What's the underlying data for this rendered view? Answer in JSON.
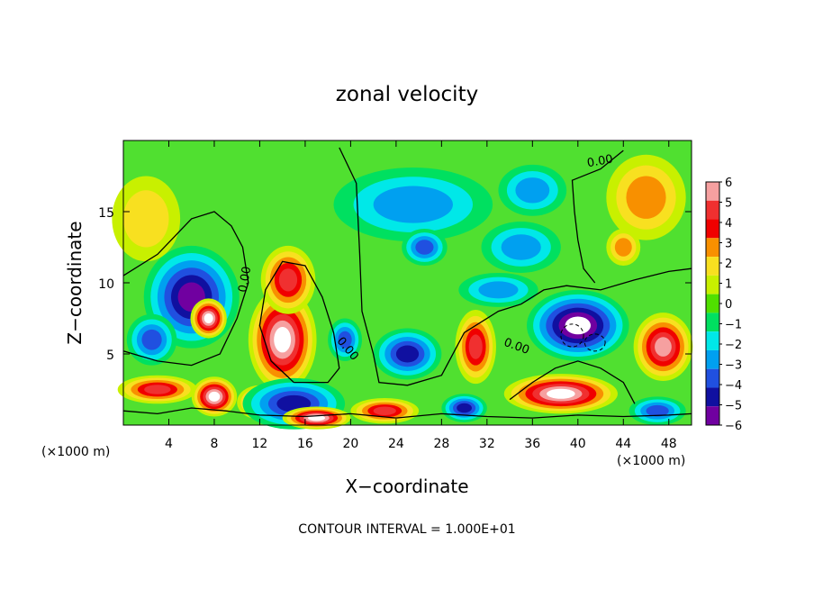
{
  "chart_data": {
    "type": "heatmap",
    "title": "zonal velocity",
    "xlabel": "X−coordinate",
    "ylabel": "Z−coordinate",
    "x_unit_left": "(×1000 m)",
    "x_unit_right": "(×1000 m)",
    "xlim": [
      0,
      50
    ],
    "ylim": [
      0,
      20
    ],
    "x_ticks": [
      4,
      8,
      12,
      16,
      20,
      24,
      28,
      32,
      36,
      40,
      44,
      48
    ],
    "y_ticks": [
      5,
      10,
      15
    ],
    "footer": "CONTOUR INTERVAL = 1.000E+01",
    "contour_labels": [
      "0.00",
      "0.00",
      "0.00",
      "0.00"
    ],
    "colorbar": {
      "levels": [
        6,
        5,
        4,
        3,
        2,
        1,
        0,
        -1,
        -2,
        -3,
        -4,
        -5,
        -6
      ],
      "labels": [
        "6",
        "5",
        "4",
        "3",
        "2",
        "1",
        "0",
        "−1",
        "−2",
        "−3",
        "−4",
        "−5",
        "−6"
      ],
      "colors": [
        "#f6a0a0",
        "#f03030",
        "#f00000",
        "#f89000",
        "#f8e020",
        "#c8f000",
        "#50e000",
        "#00e060",
        "#00e8e8",
        "#00a0f0",
        "#2050e0",
        "#1010a0",
        "#7000a0"
      ]
    },
    "colors": {
      "background": "#50e030",
      "zero_contour": "#000000",
      "saturated": "#ffffff"
    },
    "features": [
      {
        "x": 6,
        "y": 9,
        "rx": 4.2,
        "ry": 3.6,
        "v": -5.5
      },
      {
        "x": 7.5,
        "y": 7.5,
        "rx": 1.6,
        "ry": 1.4,
        "v": 7
      },
      {
        "x": 2.5,
        "y": 6,
        "rx": 2.2,
        "ry": 1.8,
        "v": -4
      },
      {
        "x": 3,
        "y": 2.5,
        "rx": 3.5,
        "ry": 1.0,
        "v": 5
      },
      {
        "x": 8,
        "y": 2.0,
        "rx": 2.0,
        "ry": 1.4,
        "v": 8
      },
      {
        "x": 12,
        "y": 1.6,
        "rx": 2.0,
        "ry": 1.2,
        "v": 5
      },
      {
        "x": 14,
        "y": 6.0,
        "rx": 3.0,
        "ry": 3.6,
        "v": 7
      },
      {
        "x": 14.5,
        "y": 10.2,
        "rx": 2.4,
        "ry": 2.4,
        "v": 5
      },
      {
        "x": 15,
        "y": 1.5,
        "rx": 4.5,
        "ry": 1.8,
        "v": -5
      },
      {
        "x": 17,
        "y": 0.5,
        "rx": 3.0,
        "ry": 0.8,
        "v": 8
      },
      {
        "x": 19.5,
        "y": 6.0,
        "rx": 1.5,
        "ry": 1.5,
        "v": -4
      },
      {
        "x": 25,
        "y": 5.0,
        "rx": 3.0,
        "ry": 1.8,
        "v": -4.5
      },
      {
        "x": 23,
        "y": 1.0,
        "rx": 3.0,
        "ry": 0.9,
        "v": 5
      },
      {
        "x": 25.5,
        "y": 15.5,
        "rx": 7.0,
        "ry": 2.6,
        "v": -3
      },
      {
        "x": 26.5,
        "y": 12.5,
        "rx": 2.0,
        "ry": 1.3,
        "v": -3.5
      },
      {
        "x": 31,
        "y": 5.5,
        "rx": 1.8,
        "ry": 2.6,
        "v": 5
      },
      {
        "x": 30,
        "y": 1.2,
        "rx": 2.0,
        "ry": 1.0,
        "v": -5
      },
      {
        "x": 33,
        "y": 9.5,
        "rx": 3.5,
        "ry": 1.2,
        "v": -2.5
      },
      {
        "x": 35,
        "y": 12.5,
        "rx": 3.5,
        "ry": 1.8,
        "v": -3
      },
      {
        "x": 40,
        "y": 7.0,
        "rx": 4.5,
        "ry": 2.5,
        "v": -7
      },
      {
        "x": 38.5,
        "y": 2.2,
        "rx": 5.0,
        "ry": 1.4,
        "v": 7
      },
      {
        "x": 47.5,
        "y": 5.5,
        "rx": 2.6,
        "ry": 2.4,
        "v": 5.5
      },
      {
        "x": 47,
        "y": 1.0,
        "rx": 2.5,
        "ry": 1.0,
        "v": -4
      },
      {
        "x": 46,
        "y": 16.0,
        "rx": 3.5,
        "ry": 3.0,
        "v": 3
      },
      {
        "x": 44,
        "y": 12.5,
        "rx": 1.5,
        "ry": 1.3,
        "v": 3
      },
      {
        "x": 2,
        "y": 14.5,
        "rx": 3.0,
        "ry": 3.0,
        "v": 2
      },
      {
        "x": 36,
        "y": 16.5,
        "rx": 3.0,
        "ry": 1.8,
        "v": -2.5
      }
    ]
  }
}
